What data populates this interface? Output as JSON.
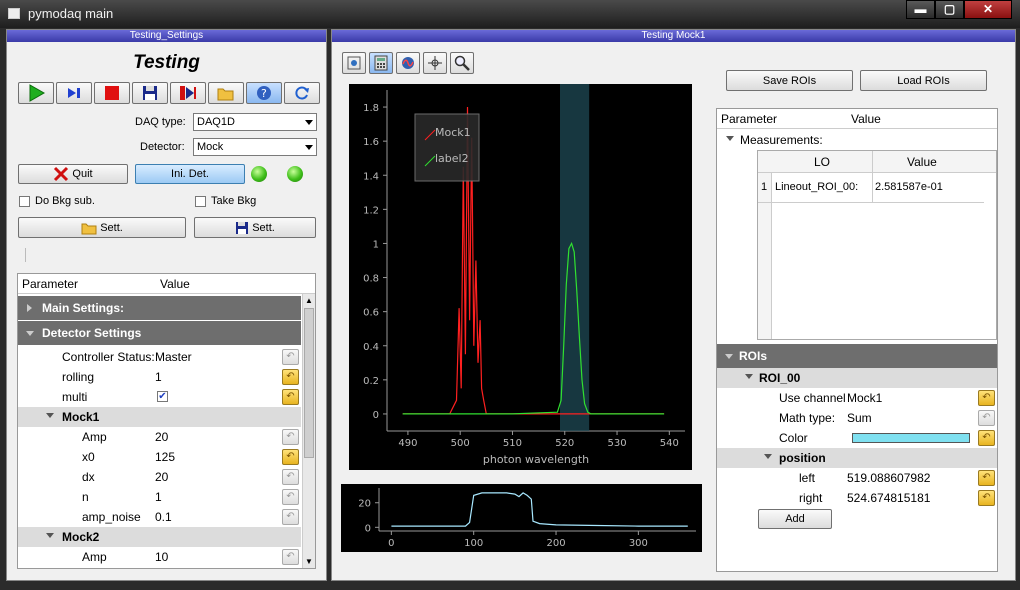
{
  "window": {
    "title": "pymodaq main",
    "min_glyph": "▬",
    "max_glyph": "▢",
    "close_glyph": "✕"
  },
  "settings_dock": {
    "header": "Testing_Settings",
    "title": "Testing",
    "daq_type_label": "DAQ type:",
    "daq_type_value": "DAQ1D",
    "detector_label": "Detector:",
    "detector_value": "Mock",
    "quit_label": "Quit",
    "ini_det_label": "Ini. Det.",
    "do_bkg_label": "Do Bkg sub.",
    "take_bkg_label": "Take Bkg",
    "sett_label_1": "Sett.",
    "sett_label_2": "Sett."
  },
  "param_tree": {
    "col_param": "Parameter",
    "col_value": "Value",
    "main_settings": "Main Settings:",
    "detector_settings": "Detector Settings",
    "controller_status_label": "Controller Status:",
    "controller_status_value": "Master",
    "rolling_label": "rolling",
    "rolling_value": "1",
    "multi_label": "multi",
    "multi_checked": true,
    "mock1": "Mock1",
    "amp_label": "Amp",
    "amp_value": "20",
    "x0_label": "x0",
    "x0_value": "125",
    "dx_label": "dx",
    "dx_value": "20",
    "n_label": "n",
    "n_value": "1",
    "amp_noise_label": "amp_noise",
    "amp_noise_value": "0.1",
    "mock2": "Mock2",
    "amp2_label": "Amp",
    "amp2_value": "10"
  },
  "viewer_dock": {
    "header": "Testing Mock1",
    "save_rois": "Save ROIs",
    "load_rois": "Load ROIs"
  },
  "main_plot": {
    "xlabel": "photon wavelength",
    "legend": [
      "Mock1",
      "label2"
    ],
    "y_ticks": [
      "0",
      "0.2",
      "0.4",
      "0.6",
      "0.8",
      "1",
      "1.2",
      "1.4",
      "1.6",
      "1.8"
    ],
    "x_ticks": [
      "490",
      "500",
      "510",
      "520",
      "530",
      "540"
    ]
  },
  "lineout_plot": {
    "y_ticks": [
      "0",
      "20"
    ],
    "x_ticks": [
      "0",
      "100",
      "200",
      "300"
    ]
  },
  "roi_tree": {
    "col_param": "Parameter",
    "col_value": "Value",
    "measurements_label": "Measurements:",
    "meas_col_lo": "LO",
    "meas_col_value": "Value",
    "meas_row_index": "1",
    "meas_row_name": "Lineout_ROI_00:",
    "meas_row_value": "2.581587e-01",
    "rois_label": "ROIs",
    "roi_name": "ROI_00",
    "use_channel_label": "Use channel",
    "use_channel_value": "Mock1",
    "math_type_label": "Math type:",
    "math_type_value": "Sum",
    "color_label": "Color",
    "color_value": "#7fe0f0",
    "position_label": "position",
    "left_label": "left",
    "left_value": "519.088607982",
    "right_label": "right",
    "right_value": "524.674815181",
    "add_label": "Add"
  },
  "chart_data": [
    {
      "type": "line",
      "xlabel": "photon wavelength",
      "ylabel": "",
      "xlim": [
        486,
        543
      ],
      "ylim": [
        -0.1,
        1.9
      ],
      "grid": false,
      "legend_position": "top-left",
      "roi_region": [
        519.09,
        524.67
      ],
      "series": [
        {
          "name": "Mock1",
          "color": "#ff2020",
          "x": [
            489,
            498,
            499.3,
            499.8,
            500.2,
            500.6,
            501,
            501.4,
            501.8,
            502.2,
            502.6,
            503,
            503.4,
            503.8,
            504.1,
            504.5,
            505,
            510,
            520,
            530,
            539
          ],
          "y": [
            0,
            0,
            0.08,
            0.62,
            0.15,
            1.45,
            0.35,
            1.8,
            0.55,
            1.62,
            0.4,
            0.9,
            0.3,
            0.55,
            0.15,
            0.08,
            0,
            0,
            0,
            0,
            0
          ]
        },
        {
          "name": "label2",
          "color": "#30e030",
          "x": [
            489,
            500,
            510,
            518.6,
            519.3,
            519.8,
            520.3,
            520.8,
            521.3,
            521.8,
            522.3,
            522.8,
            523.3,
            523.8,
            524.4,
            525,
            530,
            539
          ],
          "y": [
            0,
            0,
            0,
            0.01,
            0.08,
            0.4,
            0.76,
            0.97,
            1.0,
            0.95,
            0.72,
            0.45,
            0.2,
            0.06,
            0.01,
            0,
            0,
            0
          ]
        }
      ]
    },
    {
      "type": "line",
      "xlabel": "",
      "ylabel": "",
      "xlim": [
        -15,
        370
      ],
      "ylim": [
        -3,
        32
      ],
      "grid": false,
      "series": [
        {
          "name": "",
          "color": "#a8e8ff",
          "x": [
            0,
            90,
            95,
            100,
            110,
            120,
            140,
            150,
            155,
            160,
            165,
            170,
            172,
            180,
            200,
            250,
            300,
            360
          ],
          "y": [
            1,
            1,
            4,
            26,
            28,
            28,
            28,
            27,
            25,
            28,
            26,
            23,
            5,
            3,
            2,
            1.5,
            1,
            1
          ]
        }
      ]
    }
  ]
}
